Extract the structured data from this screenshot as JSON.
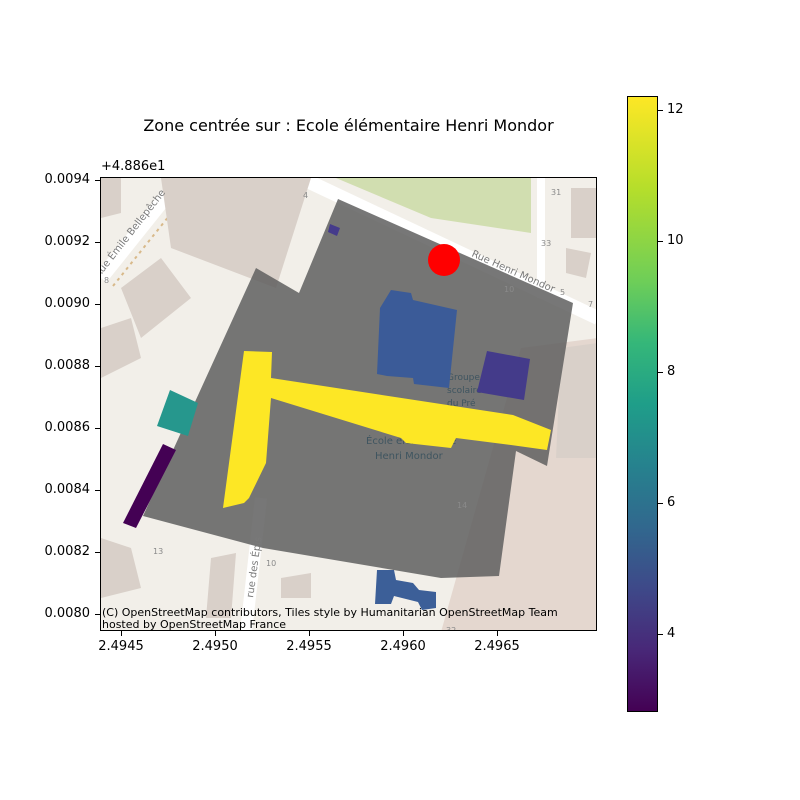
{
  "title": "Zone centrée sur : Ecole élémentaire Henri Mondor",
  "y_offset_label": "+4.886e1",
  "attribution": {
    "line1": "(C) OpenStreetMap contributors, Tiles style by Humanitarian OpenStreetMap Team",
    "line2": "hosted by OpenStreetMap France"
  },
  "y_ticks": [
    "0.0094",
    "0.0092",
    "0.0090",
    "0.0088",
    "0.0086",
    "0.0084",
    "0.0082",
    "0.0080"
  ],
  "x_ticks": [
    "2.4945",
    "2.4950",
    "2.4955",
    "2.4960",
    "2.4965"
  ],
  "colorbar": {
    "colormap": "viridis",
    "range": [
      2.8,
      12.2
    ],
    "ticks": [
      "12",
      "10",
      "8",
      "6",
      "4"
    ]
  },
  "basemap_labels": {
    "rue_emile": "Rue Émile Bellepêche",
    "rue_henri": "Rue Henri Mondor",
    "rue_epis": "rue des Épis",
    "groupe1": "Groupe",
    "groupe2": "scolaire",
    "groupe3": "du Pré",
    "ecole1": "École élémentaire",
    "ecole2": "Henri Mondor",
    "n4": "4",
    "n31": "31",
    "n33": "33",
    "n10a": "10",
    "n5": "5",
    "n7": "7",
    "n14": "14",
    "n13": "13",
    "n10b": "10",
    "n32": "32",
    "n8": "8"
  },
  "buildings": [
    {
      "name": "building-yellow-L",
      "value": 12.2,
      "color": "#fde725"
    },
    {
      "name": "building-teal",
      "value": 7.6,
      "color": "#26978d"
    },
    {
      "name": "building-purple",
      "value": 2.8,
      "color": "#440154"
    },
    {
      "name": "building-blue-center",
      "value": 5.0,
      "color": "#3b5b98"
    },
    {
      "name": "building-indigo-east",
      "value": 4.3,
      "color": "#443b8a"
    },
    {
      "name": "building-blue-south",
      "value": 5.4,
      "color": "#3c5f98"
    },
    {
      "name": "building-small-north",
      "value": 4.0,
      "color": "#453b8b"
    }
  ],
  "center_marker": {
    "label": "Ecole élémentaire Henri Mondor",
    "color": "#ff0000"
  },
  "zone_color": "#5f5f5f"
}
